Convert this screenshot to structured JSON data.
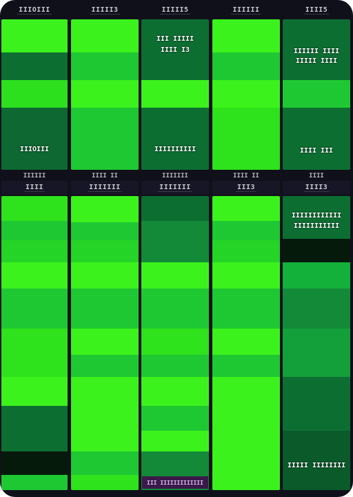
{
  "top_headers": [
    "IIIOIII",
    "IIIII3",
    "IIIII5",
    "IIIIII",
    "IIII5"
  ],
  "mid_headers": [
    "IIII",
    "IIIIIII",
    "IIIIIII",
    "III3",
    "IIII3"
  ],
  "sub_headers": [
    "IIIIII",
    "IIII II",
    "IIIIIII",
    "IIII II",
    "IIII"
  ],
  "top_labels": {
    "col3_top": [
      "III IIIII",
      "IIII I3"
    ],
    "col5_top": [
      "IIIIII IIII",
      "IIIII IIII"
    ],
    "col1_bottom": "IIIOIII",
    "col3_bottom": "IIIIIIIIII",
    "col5_bottom": "IIII III"
  },
  "bottom_labels": {
    "col5_top": [
      "IIIIIIIIIIII",
      "IIIIIIIIIII"
    ],
    "col5_bottom": "IIIII IIIIIIII"
  },
  "bottom_bar_text": "III IIIIIIIIIIIII",
  "colors": {
    "bright": "#3bf21c",
    "mid": "#1ec832",
    "green": "#13b03a",
    "dark": "#0d6e32",
    "darker": "#0a5a2a",
    "black": "#061a0c",
    "frame": "#10101a"
  }
}
